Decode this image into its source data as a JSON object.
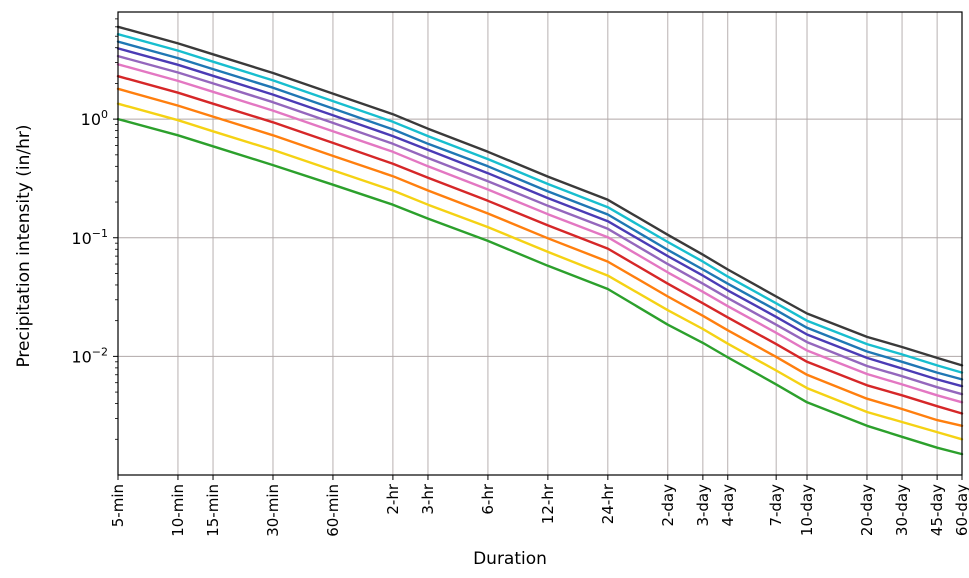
{
  "chart_data": {
    "type": "line",
    "xlabel": "Duration",
    "ylabel": "Precipitation intensity (in/hr)",
    "yscale": "log",
    "ylim": [
      0.001,
      8
    ],
    "grid": true,
    "x_ticks": [
      "5-min",
      "10-min",
      "15-min",
      "30-min",
      "60-min",
      "2-hr",
      "3-hr",
      "6-hr",
      "12-hr",
      "24-hr",
      "2-day",
      "3-day",
      "4-day",
      "7-day",
      "10-day",
      "20-day",
      "30-day",
      "45-day",
      "60-day"
    ],
    "y_ticks": [
      {
        "value": 1,
        "base": "10",
        "exp": "0"
      },
      {
        "value": 0.1,
        "base": "10",
        "exp": "−1"
      },
      {
        "value": 0.01,
        "base": "10",
        "exp": "−2"
      }
    ],
    "series": [
      {
        "color": "#2ca02c",
        "values": [
          1.0,
          0.73,
          0.59,
          0.41,
          0.28,
          0.19,
          0.145,
          0.094,
          0.058,
          0.037,
          0.0185,
          0.013,
          0.0098,
          0.0058,
          0.0041,
          0.0026,
          0.0021,
          0.0017,
          0.0015
        ]
      },
      {
        "color": "#f5d214",
        "values": [
          1.35,
          0.98,
          0.79,
          0.55,
          0.37,
          0.25,
          0.19,
          0.123,
          0.076,
          0.048,
          0.0245,
          0.017,
          0.0128,
          0.0076,
          0.0054,
          0.0034,
          0.0028,
          0.0023,
          0.002
        ]
      },
      {
        "color": "#ff7f0e",
        "values": [
          1.8,
          1.3,
          1.05,
          0.73,
          0.49,
          0.33,
          0.25,
          0.16,
          0.099,
          0.063,
          0.032,
          0.022,
          0.0166,
          0.0099,
          0.007,
          0.0044,
          0.0036,
          0.0029,
          0.0026
        ]
      },
      {
        "color": "#d62728",
        "values": [
          2.3,
          1.67,
          1.35,
          0.94,
          0.63,
          0.42,
          0.32,
          0.205,
          0.127,
          0.081,
          0.041,
          0.028,
          0.0213,
          0.0127,
          0.009,
          0.0057,
          0.0047,
          0.0038,
          0.0033
        ]
      },
      {
        "color": "#e377c2",
        "values": [
          2.9,
          2.1,
          1.7,
          1.18,
          0.79,
          0.53,
          0.4,
          0.255,
          0.158,
          0.101,
          0.051,
          0.035,
          0.0265,
          0.0158,
          0.0112,
          0.0071,
          0.0058,
          0.0047,
          0.0041
        ]
      },
      {
        "color": "#9467bd",
        "values": [
          3.4,
          2.47,
          2.0,
          1.39,
          0.93,
          0.62,
          0.47,
          0.3,
          0.186,
          0.119,
          0.06,
          0.041,
          0.031,
          0.0185,
          0.0132,
          0.0083,
          0.0068,
          0.0055,
          0.0048
        ]
      },
      {
        "color": "#4b3bb5",
        "values": [
          3.95,
          2.87,
          2.32,
          1.61,
          1.08,
          0.72,
          0.55,
          0.35,
          0.216,
          0.138,
          0.07,
          0.048,
          0.036,
          0.0215,
          0.0153,
          0.0097,
          0.0079,
          0.0064,
          0.0056
        ]
      },
      {
        "color": "#1f77b4",
        "values": [
          4.5,
          3.27,
          2.64,
          1.84,
          1.23,
          0.82,
          0.62,
          0.4,
          0.246,
          0.157,
          0.079,
          0.054,
          0.041,
          0.0245,
          0.0174,
          0.011,
          0.009,
          0.0073,
          0.0064
        ]
      },
      {
        "color": "#17becf",
        "values": [
          5.2,
          3.78,
          3.05,
          2.12,
          1.42,
          0.95,
          0.72,
          0.46,
          0.284,
          0.181,
          0.092,
          0.063,
          0.047,
          0.028,
          0.02,
          0.0127,
          0.0104,
          0.0084,
          0.0073
        ]
      },
      {
        "color": "#3a3a3a",
        "values": [
          6.0,
          4.35,
          3.52,
          2.45,
          1.64,
          1.1,
          0.83,
          0.53,
          0.328,
          0.209,
          0.106,
          0.072,
          0.054,
          0.032,
          0.023,
          0.0146,
          0.012,
          0.0097,
          0.0084
        ]
      }
    ]
  }
}
